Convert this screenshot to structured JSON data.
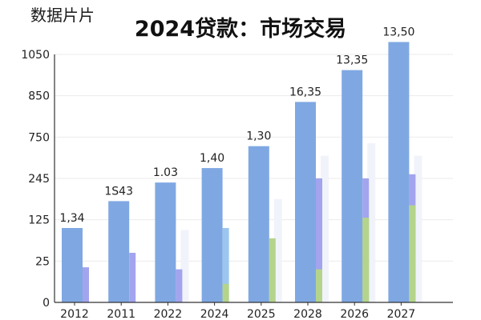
{
  "corner_label": "数据片片",
  "title": "2024贷款：市场交易",
  "colors": {
    "main": "#7fa8e3",
    "purple": "#a3a4ee",
    "light_blue": "#9cc6ef",
    "green": "#b4d48c",
    "ghost": "#f1f3fa",
    "grid": "#ebebeb",
    "axis": "#333333"
  },
  "chart_data": {
    "type": "bar",
    "title": "2024贷款：市场交易",
    "y_ticks": [
      "0",
      "25",
      "125",
      "245",
      "750",
      "850",
      "1050"
    ],
    "categories": [
      "2012",
      "2011",
      "2022",
      "2024",
      "2025",
      "2028",
      "2026",
      "2027"
    ],
    "data_labels": [
      "1,34",
      "1Ѕ43",
      "1.03",
      "1,40",
      "1,30",
      "16,35",
      "13,35",
      "13,50"
    ],
    "series": [
      {
        "color": "main",
        "tick_position_values": [
          1.8,
          2.45,
          2.9,
          3.25,
          3.78,
          4.85,
          5.62,
          6.3
        ]
      },
      {
        "color": "purple",
        "tick_position_values": [
          0.85,
          1.2,
          0.8,
          null,
          null,
          3.0,
          3.0,
          3.1
        ]
      },
      {
        "color": "light_blue",
        "tick_position_values": [
          null,
          null,
          null,
          1.8,
          null,
          null,
          null,
          null
        ]
      },
      {
        "color": "green",
        "tick_position_values": [
          null,
          null,
          null,
          0.45,
          1.55,
          0.8,
          2.05,
          2.35
        ]
      },
      {
        "color": "ghost",
        "tick_position_values": [
          null,
          null,
          1.75,
          null,
          2.5,
          3.55,
          3.85,
          3.55
        ]
      }
    ],
    "grid": true,
    "legend": "none"
  }
}
